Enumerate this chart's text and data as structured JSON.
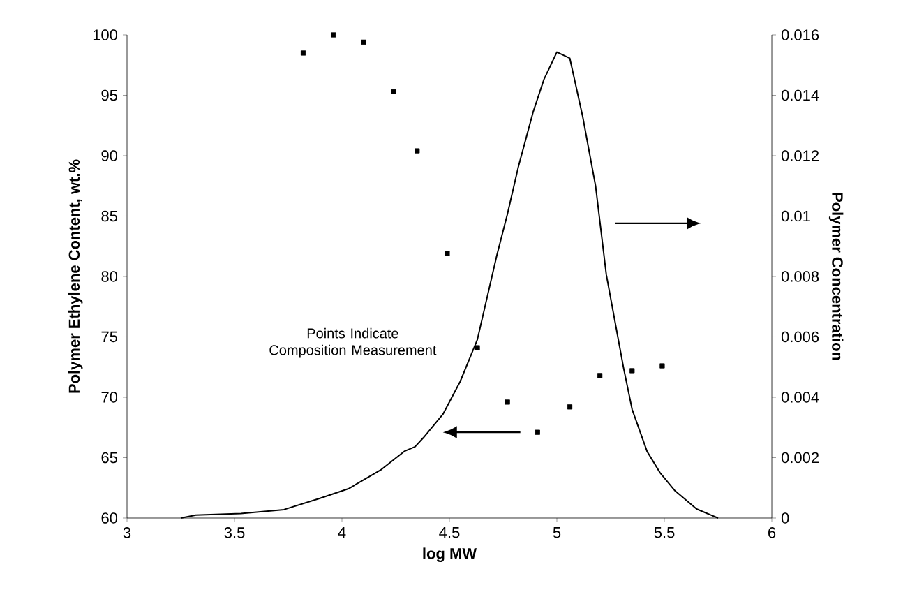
{
  "chart_data": {
    "type": "scatter",
    "xlabel": "log MW",
    "ylabel": "Polymer Ethylene Content, wt.%",
    "y2label": "Polymer Concentration",
    "annotations": [
      "Points Indicate Composition Measurement"
    ],
    "xlim": [
      3,
      6
    ],
    "xticks": [
      3,
      3.5,
      4,
      4.5,
      5,
      5.5,
      6
    ],
    "ylim": [
      60,
      100
    ],
    "yticks": [
      60,
      65,
      70,
      75,
      80,
      85,
      90,
      95,
      100
    ],
    "y2lim": [
      0,
      0.016
    ],
    "y2ticks": [
      0,
      0.002,
      0.004,
      0.006,
      0.008,
      0.01,
      0.012,
      0.014,
      0.016
    ],
    "grid": false,
    "series": [
      {
        "marker": "square",
        "color": "#000000",
        "x": [
          3.82,
          3.96,
          4.1,
          4.24,
          4.35,
          4.49,
          4.63,
          4.77,
          4.91,
          5.06,
          5.2,
          5.35,
          5.49
        ],
        "values": [
          98.5,
          100,
          99.4,
          95.3,
          90.4,
          81.9,
          74.1,
          69.6,
          67.1,
          69.2,
          71.8,
          72.2,
          72.6
        ]
      },
      {
        "type": "line",
        "axis": "y2",
        "marker": "none",
        "line_style": "solid",
        "color": "#000000",
        "x": [
          3.25,
          3.32,
          3.53,
          3.73,
          3.9,
          4.03,
          4.18,
          4.29,
          4.34,
          4.38,
          4.47,
          4.55,
          4.63,
          4.72,
          4.77,
          4.82,
          4.89,
          4.94,
          5.0,
          5.06,
          5.12,
          5.18,
          5.23,
          5.27,
          5.31,
          5.35,
          5.42,
          5.48,
          5.55,
          5.65,
          5.75
        ],
        "values": [
          0,
          0.0001,
          0.00015,
          0.00028,
          0.00066,
          0.00097,
          0.00159,
          0.00221,
          0.00236,
          0.00267,
          0.00344,
          0.00452,
          0.00591,
          0.00868,
          0.01007,
          0.01161,
          0.01346,
          0.01453,
          0.01543,
          0.01523,
          0.0133,
          0.011,
          0.00806,
          0.00652,
          0.00498,
          0.0036,
          0.0022,
          0.0015,
          0.0009,
          0.0003,
          0
        ]
      }
    ]
  }
}
